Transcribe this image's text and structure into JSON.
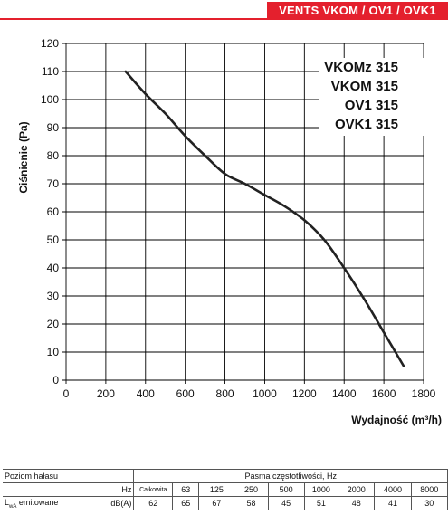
{
  "header": {
    "title": "VENTS VKOM / OV1 / OVK1"
  },
  "colors": {
    "accent": "#e4202d",
    "curve": "#222222",
    "grid": "#000000"
  },
  "chart_data": {
    "type": "line",
    "ylabel": "Ciśnienie (Pa)",
    "xlabel": "Wydajność (m³/h)",
    "xlim": [
      0,
      1800
    ],
    "ylim": [
      0,
      120
    ],
    "x_ticks": [
      0,
      200,
      400,
      600,
      800,
      1000,
      1200,
      1400,
      1600,
      1800
    ],
    "y_ticks": [
      0,
      10,
      20,
      30,
      40,
      50,
      60,
      70,
      80,
      90,
      100,
      110,
      120
    ],
    "grid": true,
    "legend_position": "top-right",
    "models": [
      "VKOMz 315",
      "VKOM 315",
      "OV1 315",
      "OVK1 315"
    ],
    "series": [
      {
        "x": [
          300,
          400,
          500,
          600,
          700,
          800,
          900,
          1000,
          1100,
          1200,
          1300,
          1400,
          1500,
          1600,
          1700
        ],
        "y": [
          110,
          102,
          95,
          87,
          80,
          73.5,
          70,
          66,
          62,
          57,
          50,
          40,
          29,
          17,
          5
        ]
      }
    ]
  },
  "noise_table": {
    "row1": {
      "label": "Poziom hałasu",
      "header": "Pasma częstotliwości, Hz"
    },
    "row2": {
      "unit": "Hz",
      "columns": [
        "Całkowita",
        "63",
        "125",
        "250",
        "500",
        "1000",
        "2000",
        "4000",
        "8000"
      ]
    },
    "row3": {
      "label_main": "L",
      "label_sub": "wA",
      "label_rest": " emitowane",
      "unit": "dB(A)",
      "values": [
        "62",
        "65",
        "67",
        "58",
        "45",
        "51",
        "48",
        "41",
        "30"
      ]
    }
  }
}
